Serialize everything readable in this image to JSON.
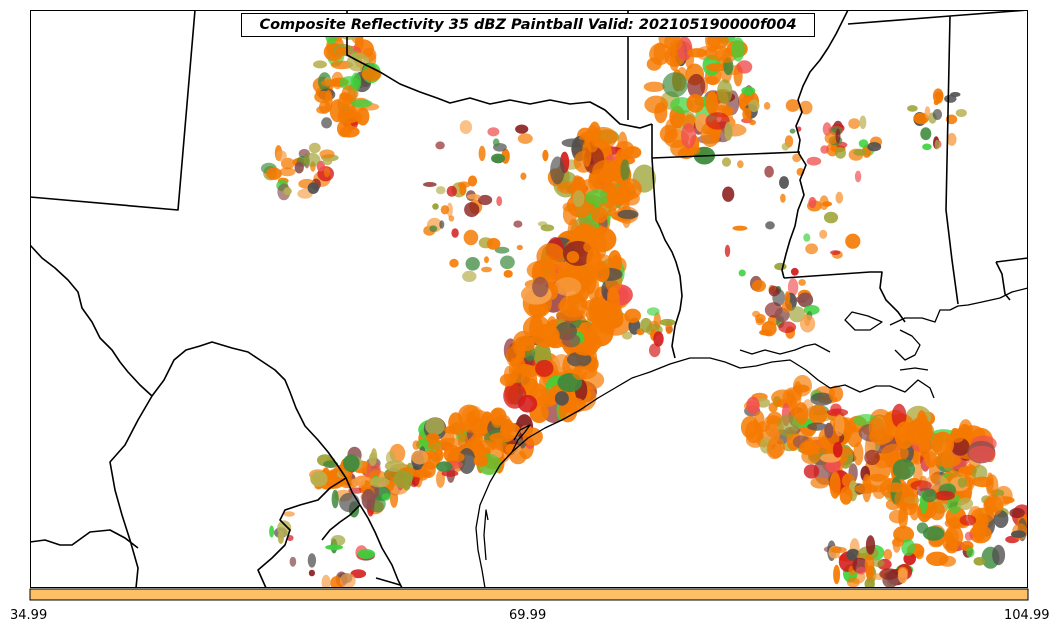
{
  "title": "Composite Reflectivity 35 dBZ Paintball Valid: 202105190000f004",
  "colorbar": {
    "color": "#fec064",
    "ticks": [
      "34.99",
      "69.99",
      "104.99"
    ]
  },
  "colors": {
    "orange": "#f57900",
    "light_orange": "#f7a04a",
    "red": "#d41919",
    "light_red": "#f05050",
    "dark_red": "#8b2020",
    "dark_green": "#3e8a3e",
    "bright_green": "#3cd23c",
    "olive": "#9aa030",
    "khaki": "#b8b050",
    "brown": "#8b5050",
    "gray": "#505050"
  }
}
